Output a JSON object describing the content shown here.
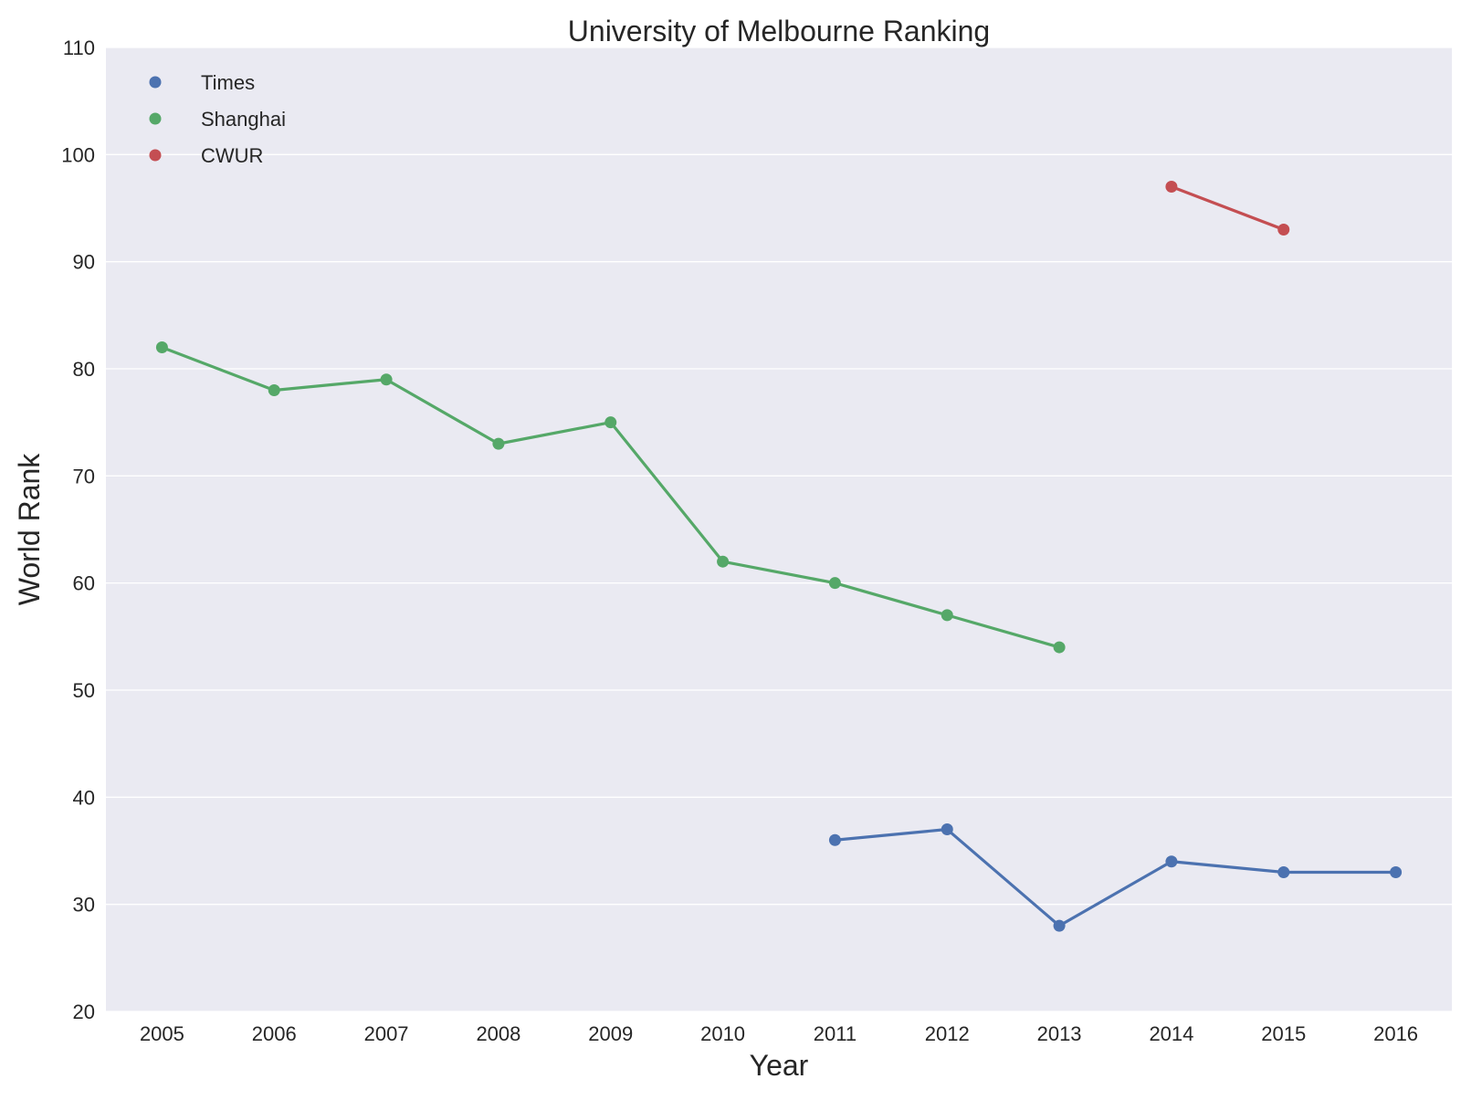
{
  "chart_data": {
    "type": "line",
    "title": "University of Melbourne Ranking",
    "xlabel": "Year",
    "ylabel": "World Rank",
    "xlim": [
      2004.5,
      2016.5
    ],
    "ylim": [
      20,
      110
    ],
    "xticks": [
      2005,
      2006,
      2007,
      2008,
      2009,
      2010,
      2011,
      2012,
      2013,
      2014,
      2015,
      2016
    ],
    "yticks": [
      20,
      30,
      40,
      50,
      60,
      70,
      80,
      90,
      100,
      110
    ],
    "grid": true,
    "legend_position": "top-left",
    "background_color": "#EAEAF2",
    "grid_color": "#FFFFFF",
    "series": [
      {
        "name": "Times",
        "color": "#4C72B0",
        "x": [
          2011,
          2012,
          2013,
          2014,
          2015,
          2016
        ],
        "y": [
          36,
          37,
          28,
          34,
          33,
          33
        ]
      },
      {
        "name": "Shanghai",
        "color": "#55A868",
        "x": [
          2005,
          2006,
          2007,
          2008,
          2009,
          2010,
          2011,
          2012,
          2013
        ],
        "y": [
          82,
          78,
          79,
          73,
          75,
          62,
          60,
          57,
          54
        ]
      },
      {
        "name": "CWUR",
        "color": "#C44E52",
        "x": [
          2014,
          2015
        ],
        "y": [
          97,
          93
        ]
      }
    ]
  }
}
